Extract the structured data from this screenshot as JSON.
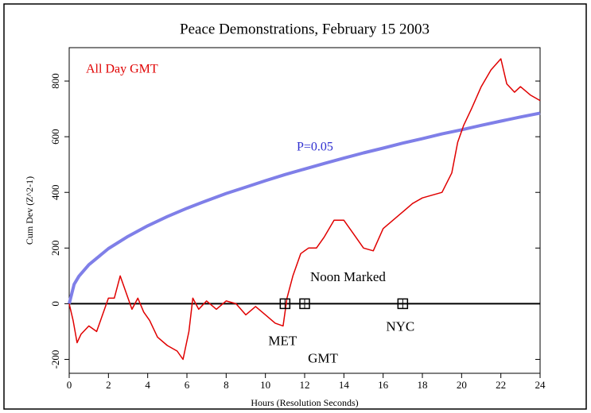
{
  "chart_data": {
    "type": "line",
    "title": "Peace Demonstrations, February 15 2003",
    "x_label": "Hours (Resolution Seconds)",
    "y_label": "Cum Dev (Z^2-1)",
    "xlim": [
      0,
      24
    ],
    "ylim": [
      -250,
      920
    ],
    "xticks": [
      0,
      2,
      4,
      6,
      8,
      10,
      12,
      14,
      16,
      18,
      20,
      22,
      24
    ],
    "yticks": [
      -200,
      0,
      200,
      400,
      600,
      800
    ],
    "series": [
      {
        "name": "All Day GMT",
        "color": "#e00000",
        "x": [
          0,
          0.2,
          0.4,
          0.6,
          1,
          1.4,
          1.7,
          2,
          2.3,
          2.6,
          2.9,
          3.2,
          3.5,
          3.8,
          4.1,
          4.5,
          5,
          5.5,
          5.8,
          6.1,
          6.3,
          6.6,
          7,
          7.5,
          8,
          8.5,
          9,
          9.5,
          10,
          10.5,
          10.9,
          11.1,
          11.4,
          11.8,
          12.2,
          12.6,
          13,
          13.5,
          14,
          14.5,
          15,
          15.5,
          16,
          16.5,
          17,
          17.5,
          18,
          18.5,
          19,
          19.5,
          19.8,
          20.1,
          20.5,
          21,
          21.5,
          22,
          22.3,
          22.7,
          23,
          23.5,
          24
        ],
        "values": [
          0,
          -60,
          -140,
          -110,
          -80,
          -100,
          -40,
          20,
          20,
          100,
          40,
          -20,
          20,
          -30,
          -60,
          -120,
          -150,
          -170,
          -200,
          -100,
          20,
          -20,
          10,
          -20,
          10,
          0,
          -40,
          -10,
          -40,
          -70,
          -80,
          20,
          100,
          180,
          200,
          200,
          240,
          300,
          300,
          250,
          200,
          190,
          270,
          300,
          330,
          360,
          380,
          390,
          400,
          470,
          580,
          640,
          700,
          780,
          840,
          880,
          790,
          760,
          780,
          750,
          730
        ]
      },
      {
        "name": "P=0.05",
        "color": "#7f7fe8",
        "x": [
          0,
          0.25,
          0.5,
          1,
          2,
          3,
          4,
          5,
          6,
          7,
          8,
          9,
          10,
          11,
          12,
          13,
          14,
          15,
          16,
          17,
          18,
          19,
          20,
          21,
          22,
          23,
          24
        ],
        "values": [
          0,
          70,
          99,
          140,
          198,
          242,
          280,
          313,
          343,
          370,
          396,
          419,
          442,
          464,
          484,
          504,
          523,
          542,
          559,
          577,
          593,
          610,
          625,
          641,
          656,
          671,
          685
        ]
      }
    ],
    "markers": [
      {
        "label": "MET",
        "x": 11,
        "y": 0
      },
      {
        "label": "GMT",
        "x": 12,
        "y": 0
      },
      {
        "label": "NYC",
        "x": 17,
        "y": 0
      }
    ],
    "annotation": "Noon Marked"
  }
}
